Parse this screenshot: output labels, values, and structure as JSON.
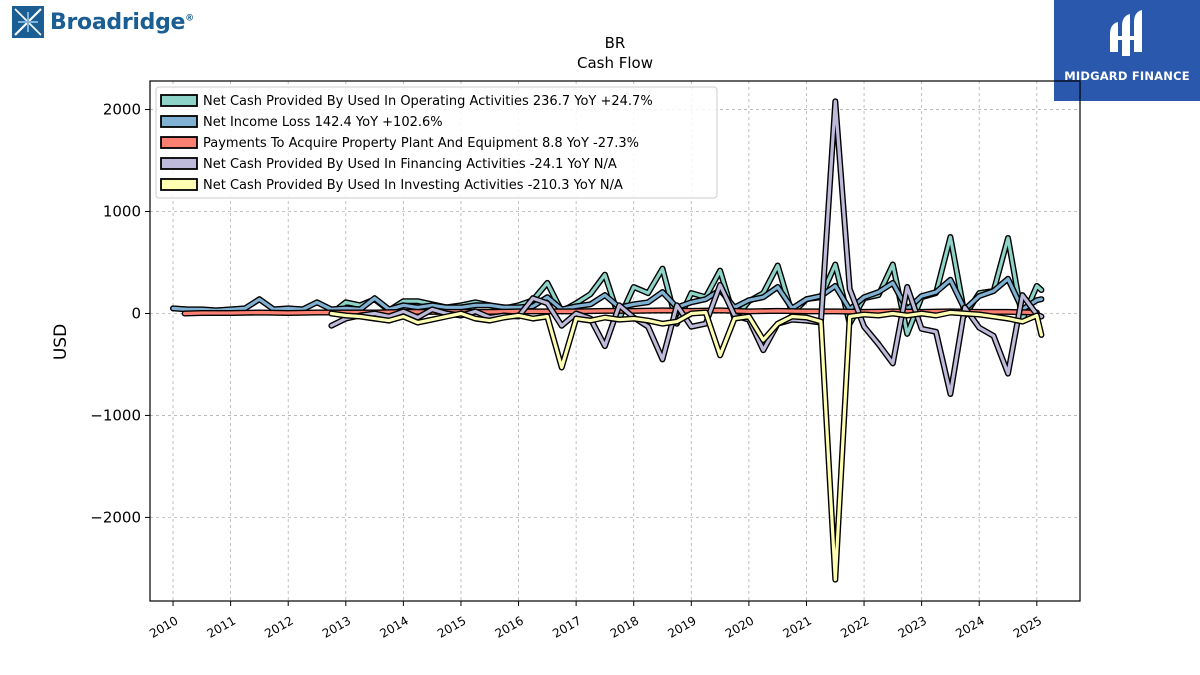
{
  "branding": {
    "left_logo": "Broadridge",
    "left_logo_mark": "®",
    "right_logo": "MIDGARD FINANCE"
  },
  "chart_data": {
    "type": "line",
    "title": "BR",
    "subtitle": "Cash Flow",
    "ylabel": "USD",
    "xlabel": "",
    "xlim": [
      2009.6,
      2025.75
    ],
    "ylim": [
      -2820,
      2280
    ],
    "x_ticks": [
      "2010",
      "2011",
      "2012",
      "2013",
      "2014",
      "2015",
      "2016",
      "2017",
      "2018",
      "2019",
      "2020",
      "2021",
      "2022",
      "2023",
      "2024",
      "2025"
    ],
    "y_ticks": [
      -2000,
      -1000,
      0,
      1000,
      2000
    ],
    "y_tick_labels": [
      "−2000",
      "−1000",
      "0",
      "1000",
      "2000"
    ],
    "grid": true,
    "legend_position": "top-left",
    "series": [
      {
        "name": "Net Cash Provided By Used In Operating Activities  236.7 YoY +24.7%",
        "color": "#8dd3c7",
        "x": [
          2012.75,
          2013.0,
          2013.25,
          2013.5,
          2013.75,
          2014.0,
          2014.25,
          2014.5,
          2014.75,
          2015.0,
          2015.25,
          2015.5,
          2015.75,
          2016.0,
          2016.25,
          2016.5,
          2016.75,
          2017.0,
          2017.25,
          2017.5,
          2017.75,
          2018.0,
          2018.25,
          2018.5,
          2018.75,
          2019.0,
          2019.25,
          2019.5,
          2019.75,
          2020.0,
          2020.25,
          2020.5,
          2020.75,
          2021.0,
          2021.25,
          2021.5,
          2021.75,
          2022.0,
          2022.25,
          2022.5,
          2022.75,
          2023.0,
          2023.25,
          2023.5,
          2023.75,
          2024.0,
          2024.25,
          2024.5,
          2024.75,
          2025.0,
          2025.08
        ],
        "y": [
          0,
          110,
          80,
          140,
          30,
          120,
          120,
          90,
          60,
          80,
          110,
          80,
          50,
          80,
          130,
          300,
          20,
          100,
          190,
          380,
          -50,
          260,
          200,
          440,
          -100,
          200,
          160,
          420,
          -50,
          120,
          200,
          470,
          0,
          140,
          160,
          480,
          -100,
          150,
          180,
          480,
          -200,
          160,
          200,
          750,
          -20,
          200,
          220,
          740,
          -60,
          270,
          230
        ]
      },
      {
        "name": "Net Income Loss  142.4 YoY +102.6%",
        "color": "#80b1d3",
        "x": [
          2010.0,
          2010.25,
          2010.5,
          2010.75,
          2011.0,
          2011.25,
          2011.5,
          2011.75,
          2012.0,
          2012.25,
          2012.5,
          2012.75,
          2013.0,
          2013.25,
          2013.5,
          2013.75,
          2014.0,
          2014.25,
          2014.5,
          2014.75,
          2015.0,
          2015.25,
          2015.5,
          2015.75,
          2016.0,
          2016.25,
          2016.5,
          2016.75,
          2017.0,
          2017.25,
          2017.5,
          2017.75,
          2018.0,
          2018.25,
          2018.5,
          2018.75,
          2019.0,
          2019.25,
          2019.5,
          2019.75,
          2020.0,
          2020.25,
          2020.5,
          2020.75,
          2021.0,
          2021.25,
          2021.5,
          2021.75,
          2022.0,
          2022.25,
          2022.5,
          2022.75,
          2023.0,
          2023.25,
          2023.5,
          2023.75,
          2024.0,
          2024.25,
          2024.5,
          2024.75,
          2025.0,
          2025.08
        ],
        "y": [
          50,
          40,
          40,
          30,
          40,
          50,
          140,
          40,
          50,
          40,
          110,
          40,
          50,
          40,
          150,
          40,
          80,
          60,
          80,
          60,
          60,
          80,
          80,
          60,
          60,
          70,
          160,
          40,
          70,
          90,
          180,
          60,
          90,
          110,
          210,
          60,
          110,
          140,
          230,
          60,
          130,
          160,
          260,
          50,
          140,
          170,
          270,
          40,
          160,
          210,
          300,
          40,
          170,
          210,
          330,
          40,
          170,
          220,
          340,
          40,
          130,
          140
        ]
      },
      {
        "name": "Payments To Acquire Property Plant And Equipment  8.8 YoY -27.3%",
        "color": "#fb8072",
        "x": [
          2010.2,
          2010.5,
          2010.75,
          2011.0,
          2011.5,
          2012.0,
          2012.5,
          2013.0,
          2013.5,
          2014.0,
          2014.5,
          2015.0,
          2015.5,
          2016.0,
          2016.5,
          2017.0,
          2017.5,
          2018.0,
          2018.5,
          2019.0,
          2019.5,
          2020.0,
          2020.5,
          2021.0,
          2021.5,
          2022.0,
          2022.5,
          2023.0,
          2023.5,
          2024.0,
          2024.5,
          2025.0
        ],
        "y": [
          0,
          5,
          5,
          5,
          10,
          5,
          10,
          10,
          10,
          15,
          15,
          15,
          15,
          20,
          20,
          20,
          25,
          25,
          30,
          25,
          30,
          20,
          25,
          20,
          20,
          15,
          20,
          15,
          20,
          15,
          15,
          10
        ]
      },
      {
        "name": "Net Cash Provided By Used In Financing Activities  -24.1 YoY N/A",
        "color": "#bebada",
        "x": [
          2012.75,
          2013.0,
          2013.25,
          2013.5,
          2013.75,
          2014.0,
          2014.25,
          2014.5,
          2014.75,
          2015.0,
          2015.25,
          2015.5,
          2015.75,
          2016.0,
          2016.25,
          2016.5,
          2016.75,
          2017.0,
          2017.25,
          2017.5,
          2017.75,
          2018.0,
          2018.25,
          2018.5,
          2018.75,
          2019.0,
          2019.25,
          2019.5,
          2019.75,
          2020.0,
          2020.25,
          2020.5,
          2020.75,
          2021.0,
          2021.25,
          2021.5,
          2021.75,
          2022.0,
          2022.25,
          2022.5,
          2022.75,
          2023.0,
          2023.25,
          2023.5,
          2023.75,
          2024.0,
          2024.25,
          2024.5,
          2024.75,
          2025.0,
          2025.08
        ],
        "y": [
          -120,
          -50,
          -20,
          0,
          -30,
          20,
          -40,
          40,
          0,
          -20,
          20,
          -40,
          -20,
          -30,
          150,
          100,
          -120,
          0,
          -50,
          -320,
          80,
          -40,
          -130,
          -450,
          80,
          -130,
          -100,
          280,
          -20,
          -60,
          -360,
          -100,
          -60,
          -70,
          -90,
          2080,
          240,
          -130,
          -300,
          -490,
          260,
          -150,
          -180,
          -790,
          60,
          -140,
          -220,
          -590,
          180,
          -10,
          -30
        ]
      },
      {
        "name": "Net Cash Provided By Used In Investing Activities  -210.3 YoY N/A",
        "color": "#ffffb3",
        "x": [
          2012.75,
          2013.0,
          2013.25,
          2013.5,
          2013.75,
          2014.0,
          2014.25,
          2014.5,
          2014.75,
          2015.0,
          2015.25,
          2015.5,
          2015.75,
          2016.0,
          2016.25,
          2016.5,
          2016.75,
          2017.0,
          2017.25,
          2017.5,
          2017.75,
          2018.0,
          2018.25,
          2018.5,
          2018.75,
          2019.0,
          2019.25,
          2019.5,
          2019.75,
          2020.0,
          2020.25,
          2020.5,
          2020.75,
          2021.0,
          2021.25,
          2021.5,
          2021.75,
          2022.0,
          2022.25,
          2022.5,
          2022.75,
          2023.0,
          2023.25,
          2023.5,
          2023.75,
          2024.0,
          2024.25,
          2024.5,
          2024.75,
          2025.0,
          2025.08
        ],
        "y": [
          0,
          -20,
          -30,
          -50,
          -70,
          -30,
          -90,
          -60,
          -30,
          0,
          -50,
          -70,
          -40,
          -20,
          -50,
          -30,
          -530,
          -50,
          -70,
          -40,
          -60,
          -50,
          -70,
          -100,
          -80,
          0,
          10,
          -410,
          -50,
          -30,
          -260,
          -100,
          -30,
          -40,
          -80,
          -2610,
          -30,
          -10,
          -20,
          0,
          -20,
          0,
          -20,
          10,
          0,
          -10,
          -30,
          -50,
          -80,
          -20,
          -210
        ]
      }
    ]
  }
}
